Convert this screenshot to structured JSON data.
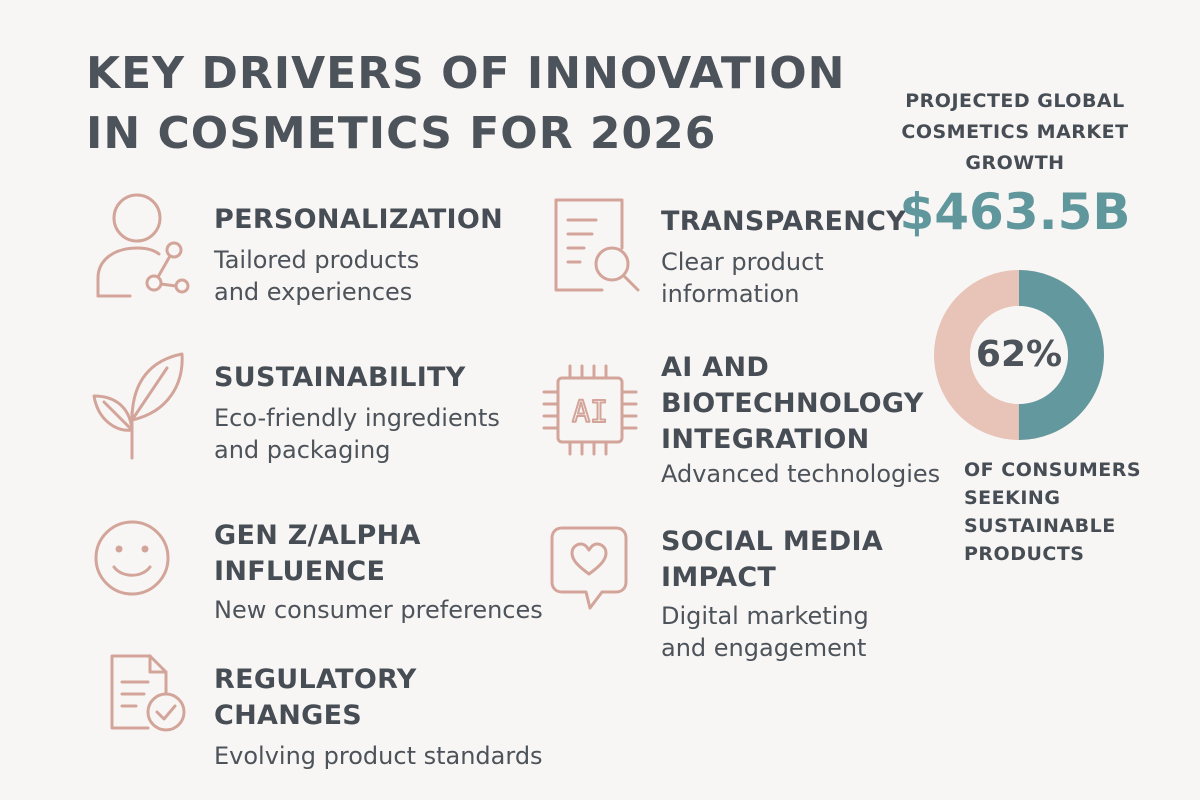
{
  "title": {
    "line1": "KEY DRIVERS OF INNOVATION",
    "line2": "IN COSMETICS FOR 2026"
  },
  "drivers": [
    {
      "icon": "person-share-icon",
      "name_lines": [
        "PERSONALIZATION"
      ],
      "desc_lines": [
        "Tailored products",
        "and experiences"
      ]
    },
    {
      "icon": "leaf-icon",
      "name_lines": [
        "SUSTAINABILITY"
      ],
      "desc_lines": [
        "Eco-friendly ingredients",
        "and packaging"
      ]
    },
    {
      "icon": "smiley-face-icon",
      "name_lines": [
        "GEN Z/ALPHA",
        "INFLUENCE"
      ],
      "desc_lines": [
        "New consumer preferences"
      ]
    },
    {
      "icon": "document-check-icon",
      "name_lines": [
        "REGULATORY",
        "CHANGES"
      ],
      "desc_lines": [
        "Evolving product standards"
      ]
    },
    {
      "icon": "document-search-icon",
      "name_lines": [
        "TRANSPARENCY"
      ],
      "desc_lines": [
        "Clear product",
        "information"
      ]
    },
    {
      "icon": "ai-chip-icon",
      "icon_text": "AI",
      "name_lines": [
        "AI AND",
        "BIOTECHNOLOGY",
        "INTEGRATION"
      ],
      "desc_lines": [
        "Advanced technologies"
      ]
    },
    {
      "icon": "heart-chat-icon",
      "name_lines": [
        "SOCIAL MEDIA",
        "IMPACT"
      ],
      "desc_lines": [
        "Digital marketing",
        "and engagement"
      ]
    }
  ],
  "market": {
    "heading_lines": [
      "PROJECTED GLOBAL",
      "COSMETICS MARKET",
      "GROWTH"
    ],
    "value": "$463.5B"
  },
  "consumer_stat": {
    "percent_label": "62%",
    "fraction": 0.62,
    "caption_lines": [
      "OF CONSUMERS",
      "SEEKING",
      "SUSTAINABLE",
      "PRODUCTS"
    ]
  },
  "colors": {
    "background": "#f8f6f4",
    "text": "#474d55",
    "icon_stroke": "#d3a59a",
    "accent_teal": "#5f979c",
    "donut_pink": "#e7c3b8",
    "donut_teal": "#63999e"
  }
}
